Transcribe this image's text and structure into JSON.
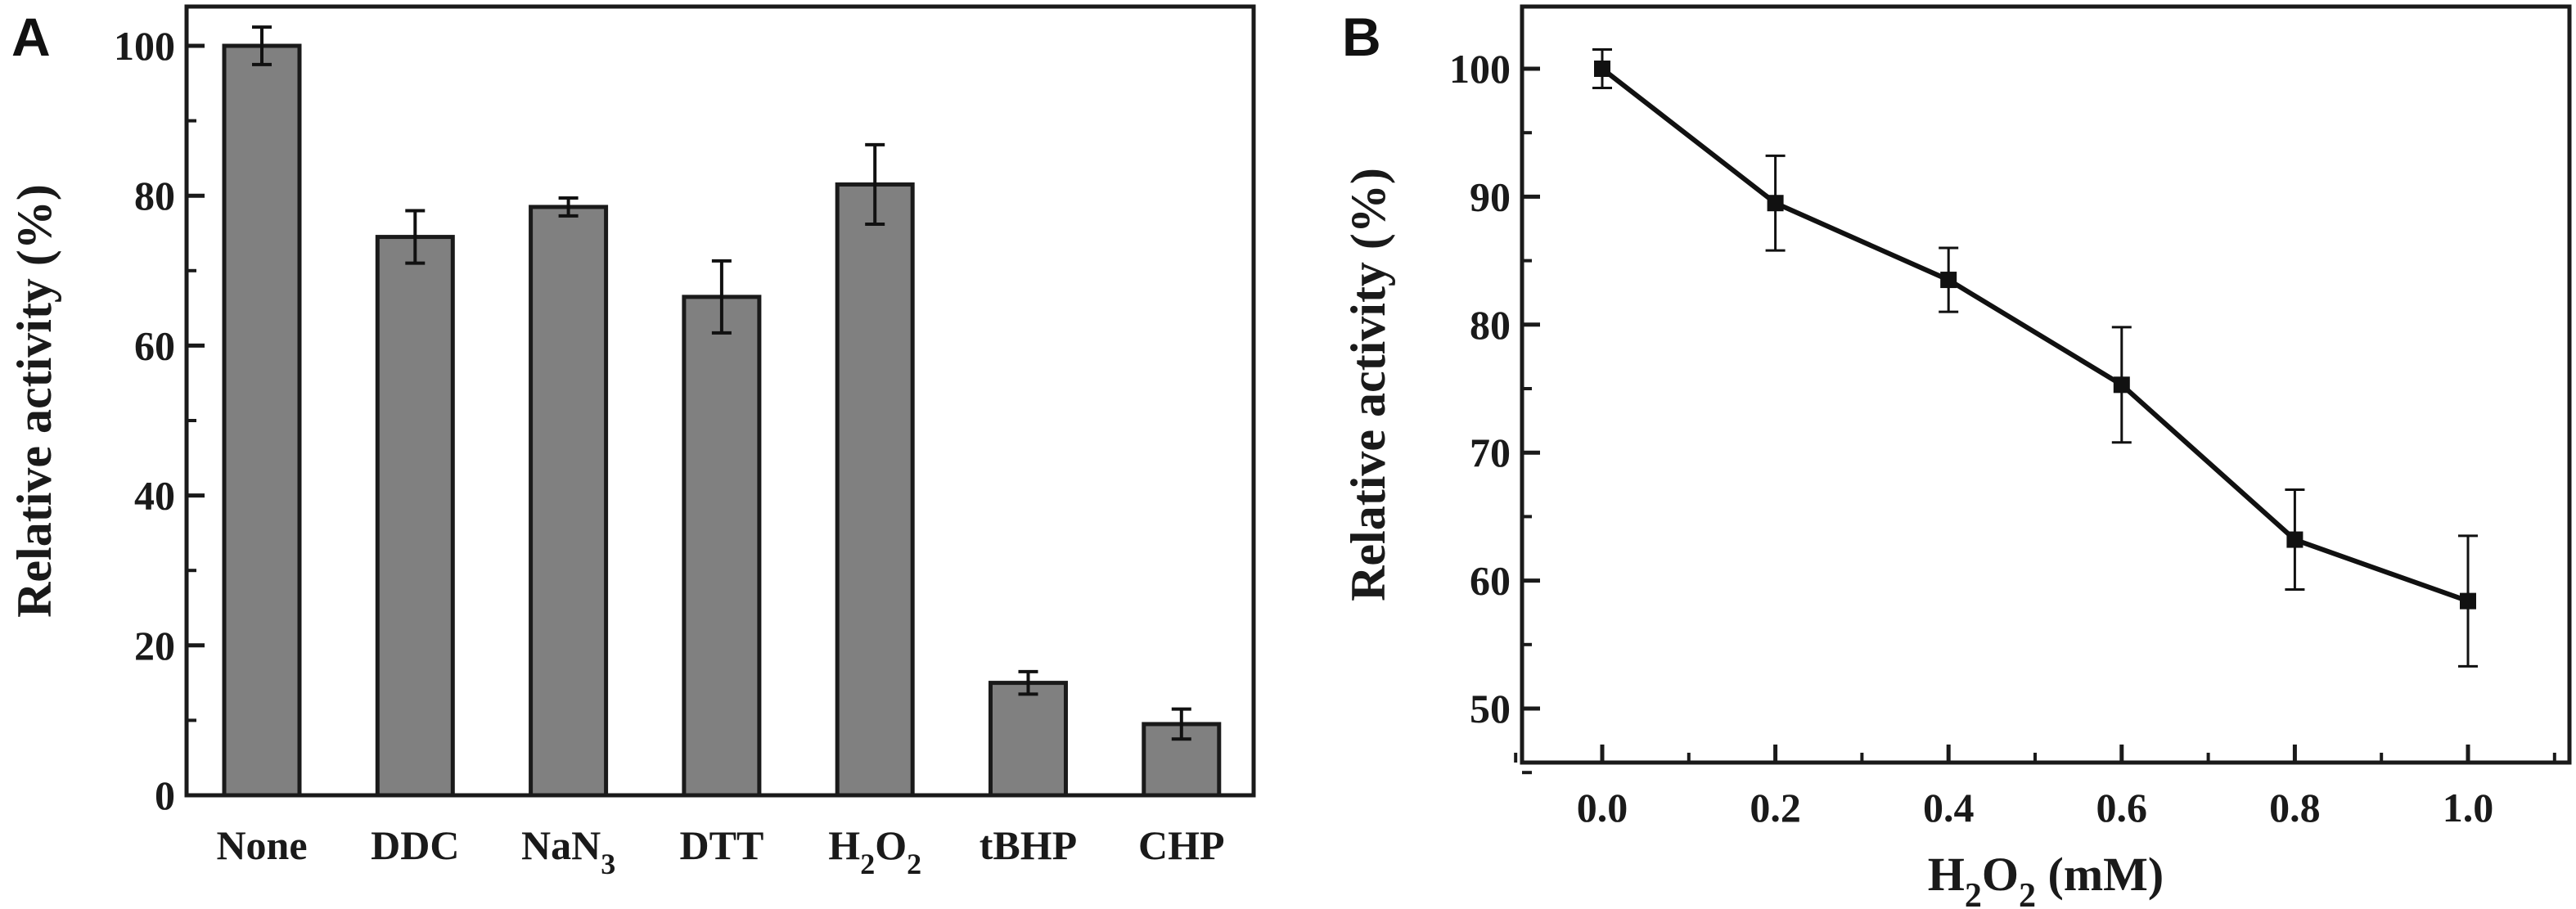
{
  "chart_data": [
    {
      "panel": "A",
      "type": "bar",
      "categories": [
        "None",
        "DDC",
        "NaN3",
        "DTT",
        "H2O2",
        "tBHP",
        "CHP"
      ],
      "category_labels": [
        {
          "main": "None",
          "sub": ""
        },
        {
          "main": "DDC",
          "sub": ""
        },
        {
          "main": "NaN",
          "sub": "3"
        },
        {
          "main": "DTT",
          "sub": ""
        },
        {
          "main": "H",
          "sub": "2",
          "main2": "O",
          "sub2": "2"
        },
        {
          "main": "tBHP",
          "sub": ""
        },
        {
          "main": "CHP",
          "sub": ""
        }
      ],
      "values": [
        100,
        74.5,
        78.5,
        66.5,
        81.5,
        15,
        9.5
      ],
      "errors": [
        2.5,
        3.5,
        1.2,
        4.8,
        5.3,
        1.5,
        2.0
      ],
      "ylabel": "Relative activity (%)",
      "xlabel": "",
      "ylim": [
        0,
        105
      ],
      "yticks": [
        0,
        20,
        40,
        60,
        80,
        100
      ],
      "bar_color": "#808080",
      "grid": false
    },
    {
      "panel": "B",
      "type": "line",
      "x": [
        0.0,
        0.2,
        0.4,
        0.6,
        0.8,
        1.0
      ],
      "y": [
        100,
        89.5,
        83.5,
        75.3,
        63.2,
        58.4
      ],
      "errors": [
        1.5,
        3.7,
        2.5,
        4.5,
        3.9,
        5.1
      ],
      "ylabel": "Relative activity (%)",
      "xlabel": {
        "main": "H",
        "sub": "2",
        "main2": "O",
        "sub2": "2",
        "rest": " (mM)"
      },
      "xlim": [
        -0.1,
        1.1
      ],
      "ylim": [
        45,
        105
      ],
      "xticks": [
        "0.0",
        "0.2",
        "0.4",
        "0.6",
        "0.8",
        "1.0"
      ],
      "yticks": [
        50,
        60,
        70,
        80,
        90,
        100
      ],
      "marker": "square",
      "line_color": "#111111",
      "grid": false
    }
  ]
}
